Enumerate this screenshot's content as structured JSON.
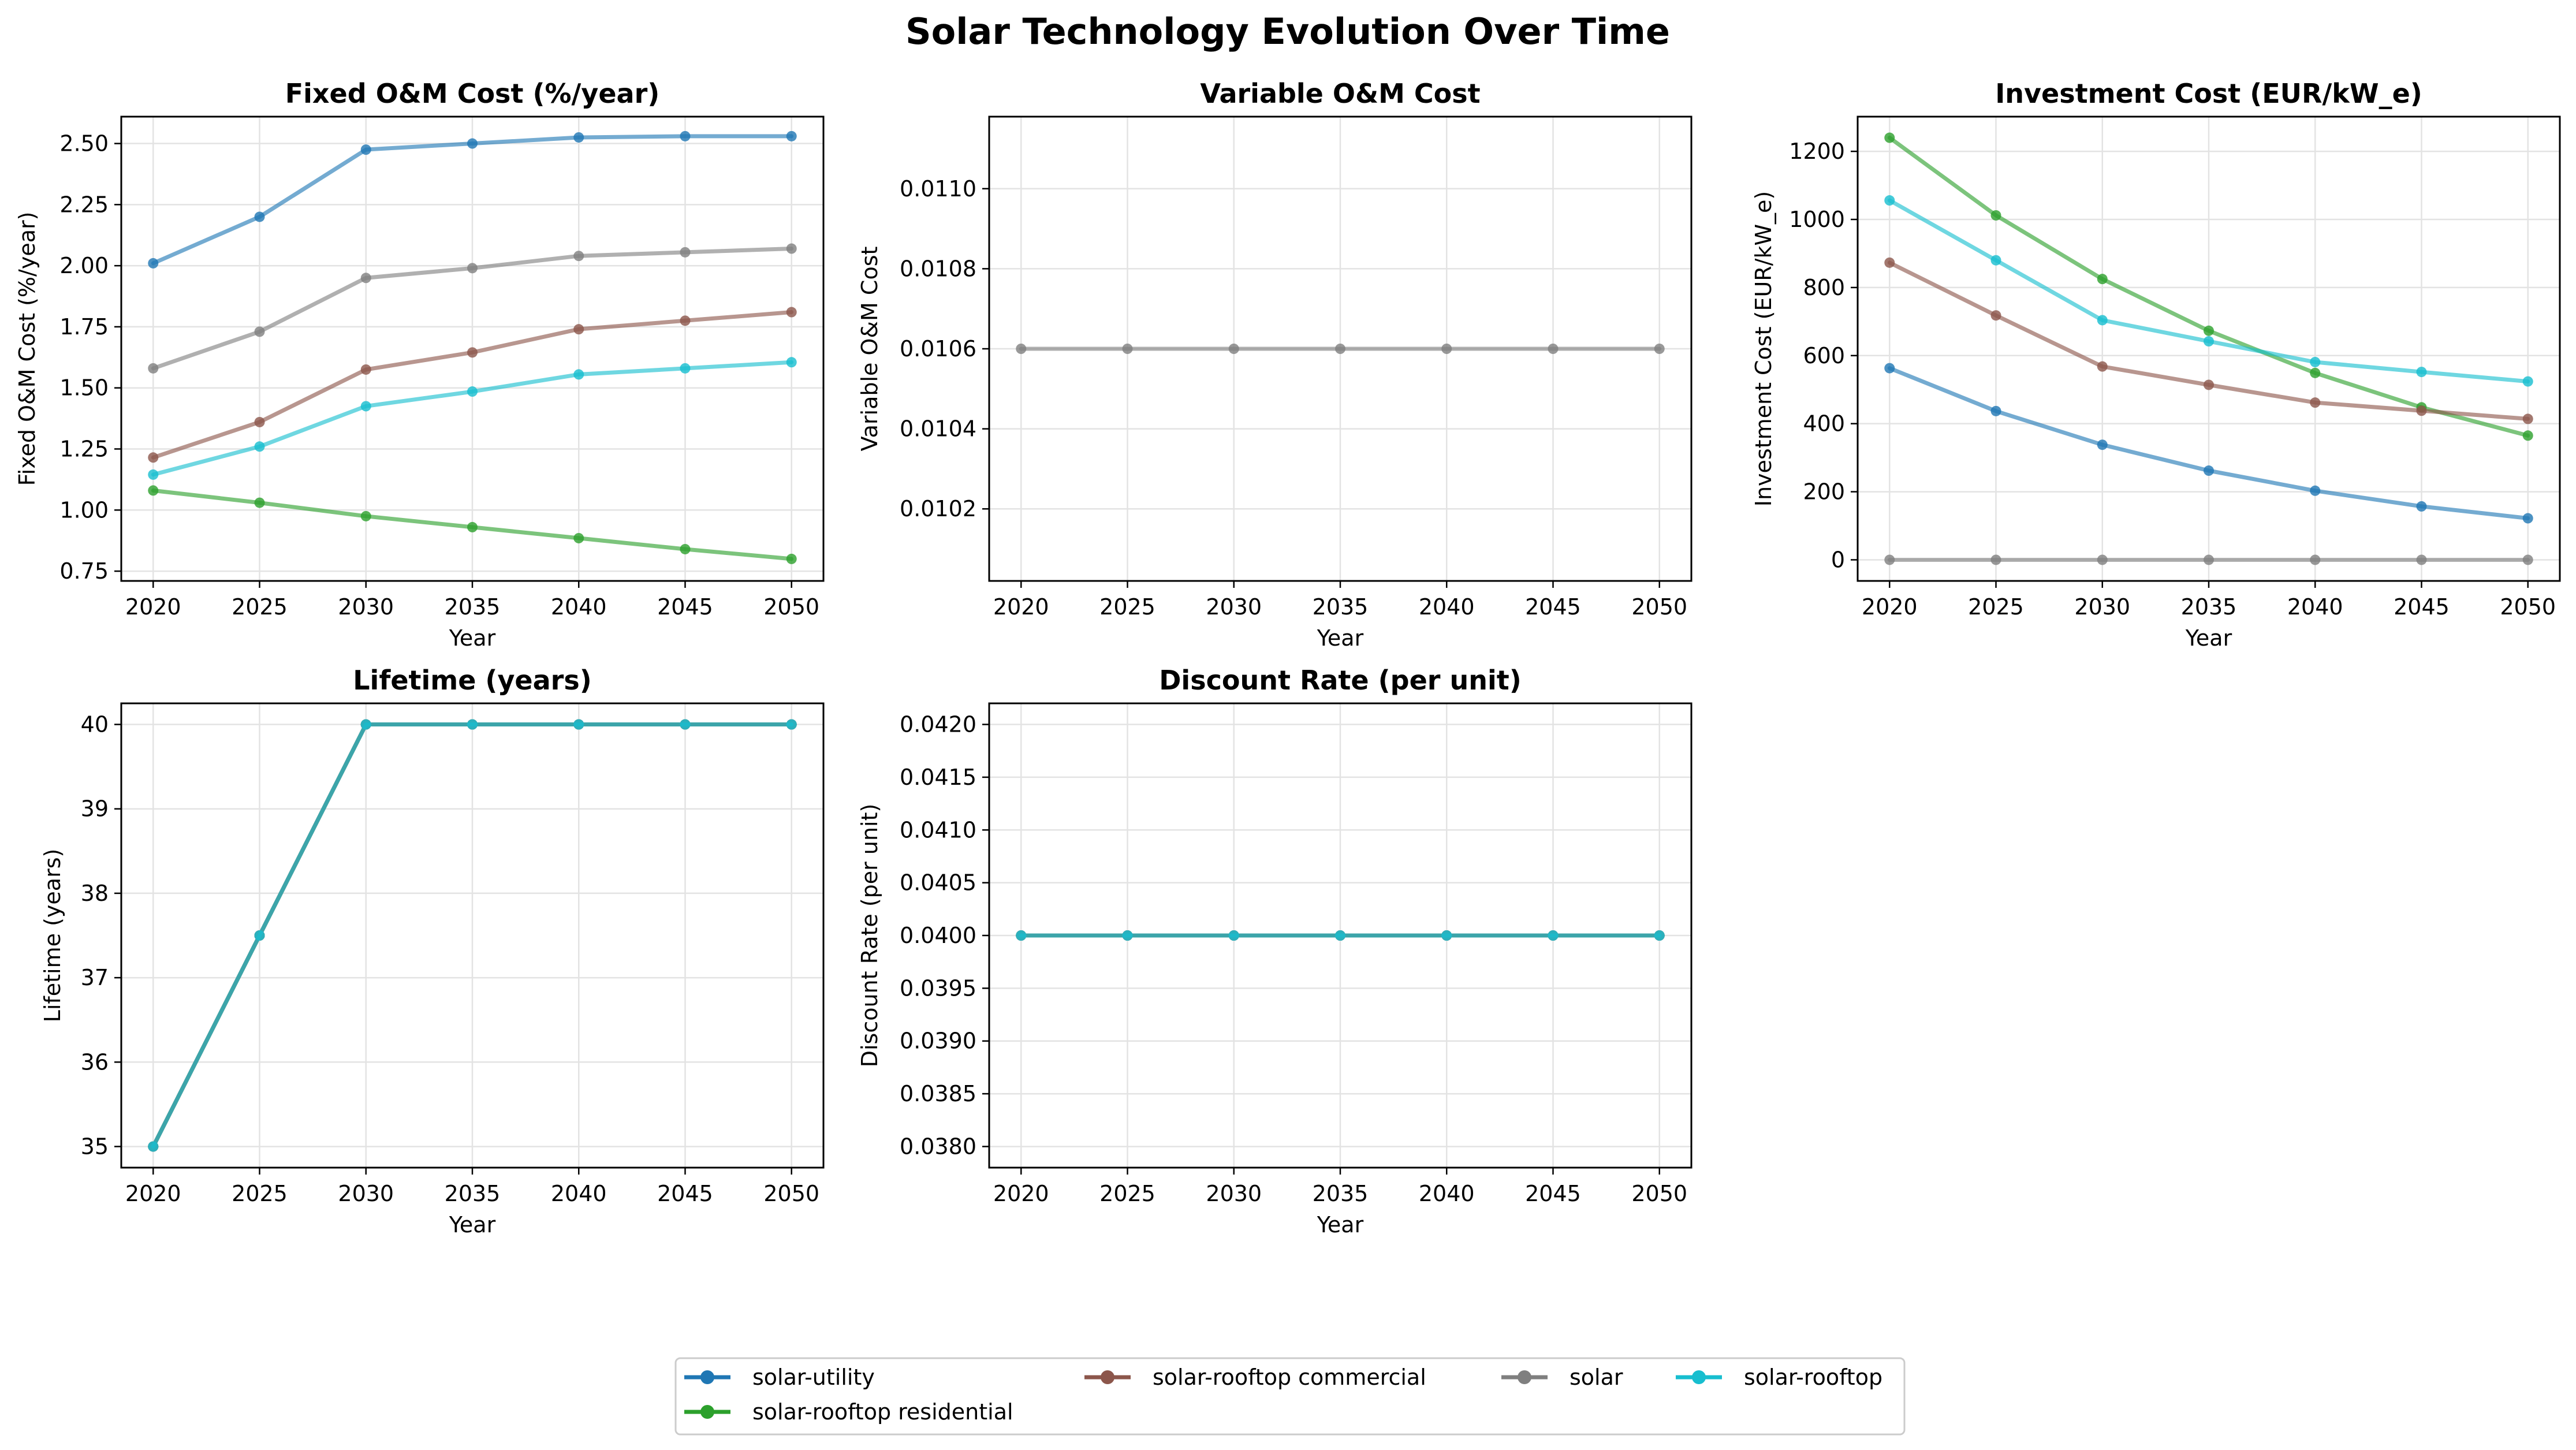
{
  "figure": {
    "title": "Solar Technology Evolution Over Time"
  },
  "legend": {
    "items": [
      {
        "name": "solar-utility",
        "color": "#1f77b4"
      },
      {
        "name": "solar-rooftop residential",
        "color": "#2ca02c"
      },
      {
        "name": "solar-rooftop commercial",
        "color": "#8c564b"
      },
      {
        "name": "solar",
        "color": "#7f7f7f"
      },
      {
        "name": "solar-rooftop",
        "color": "#17becf"
      }
    ]
  },
  "chart_data": [
    {
      "type": "line",
      "title": "Fixed O&M Cost (%/year)",
      "xlabel": "Year",
      "ylabel": "Fixed O&M Cost (%/year)",
      "x": [
        2020,
        2025,
        2030,
        2035,
        2040,
        2045,
        2050
      ],
      "xlim": [
        2018.5,
        2051.5
      ],
      "ylim": [
        0.71,
        2.61
      ],
      "yticks": [
        0.75,
        1.0,
        1.25,
        1.5,
        1.75,
        2.0,
        2.25,
        2.5
      ],
      "ytick_labels": [
        "0.75",
        "1.00",
        "1.25",
        "1.50",
        "1.75",
        "2.00",
        "2.25",
        "2.50"
      ],
      "grid": true,
      "series": [
        {
          "name": "solar-utility",
          "color": "#1f77b4",
          "values": [
            2.01,
            2.2,
            2.475,
            2.5,
            2.525,
            2.53,
            2.53
          ]
        },
        {
          "name": "solar-rooftop residential",
          "color": "#2ca02c",
          "values": [
            1.08,
            1.03,
            0.975,
            0.93,
            0.885,
            0.84,
            0.8
          ]
        },
        {
          "name": "solar-rooftop commercial",
          "color": "#8c564b",
          "values": [
            1.215,
            1.36,
            1.575,
            1.645,
            1.74,
            1.775,
            1.81
          ]
        },
        {
          "name": "solar",
          "color": "#7f7f7f",
          "values": [
            1.58,
            1.73,
            1.95,
            1.99,
            2.04,
            2.055,
            2.07
          ]
        },
        {
          "name": "solar-rooftop",
          "color": "#17becf",
          "values": [
            1.145,
            1.26,
            1.425,
            1.485,
            1.555,
            1.58,
            1.605
          ]
        }
      ]
    },
    {
      "type": "line",
      "title": "Variable O&M Cost",
      "xlabel": "Year",
      "ylabel": "Variable O&M Cost",
      "x": [
        2020,
        2025,
        2030,
        2035,
        2040,
        2045,
        2050
      ],
      "xlim": [
        2018.5,
        2051.5
      ],
      "ylim": [
        0.01002,
        0.01118
      ],
      "yticks": [
        0.0102,
        0.0104,
        0.0106,
        0.0108,
        0.011
      ],
      "ytick_labels": [
        "0.0102",
        "0.0104",
        "0.0106",
        "0.0108",
        "0.0110"
      ],
      "grid": true,
      "series": [
        {
          "name": "solar",
          "color": "#7f7f7f",
          "values": [
            0.0106,
            0.0106,
            0.0106,
            0.0106,
            0.0106,
            0.0106,
            0.0106
          ]
        }
      ]
    },
    {
      "type": "line",
      "title": "Investment Cost (EUR/kW_e)",
      "xlabel": "Year",
      "ylabel": "Investment Cost (EUR/kW_e)",
      "x": [
        2020,
        2025,
        2030,
        2035,
        2040,
        2045,
        2050
      ],
      "xlim": [
        2018.5,
        2051.5
      ],
      "ylim": [
        -62,
        1302
      ],
      "yticks": [
        0,
        200,
        400,
        600,
        800,
        1000,
        1200
      ],
      "ytick_labels": [
        "0",
        "200",
        "400",
        "600",
        "800",
        "1000",
        "1200"
      ],
      "grid": true,
      "series": [
        {
          "name": "solar-utility",
          "color": "#1f77b4",
          "values": [
            563,
            437,
            338,
            262,
            203,
            157,
            122
          ]
        },
        {
          "name": "solar-rooftop residential",
          "color": "#2ca02c",
          "values": [
            1240,
            1012,
            825,
            673,
            549,
            448,
            365
          ]
        },
        {
          "name": "solar-rooftop commercial",
          "color": "#8c564b",
          "values": [
            873,
            718,
            568,
            514,
            462,
            438,
            414
          ]
        },
        {
          "name": "solar",
          "color": "#7f7f7f",
          "values": [
            0,
            0,
            0,
            0,
            0,
            0,
            0
          ]
        },
        {
          "name": "solar-rooftop",
          "color": "#17becf",
          "values": [
            1056,
            880,
            704,
            642,
            581,
            552,
            524
          ]
        }
      ]
    },
    {
      "type": "line",
      "title": "Lifetime (years)",
      "xlabel": "Year",
      "ylabel": "Lifetime (years)",
      "x": [
        2020,
        2025,
        2030,
        2035,
        2040,
        2045,
        2050
      ],
      "xlim": [
        2018.5,
        2051.5
      ],
      "ylim": [
        34.75,
        40.25
      ],
      "yticks": [
        35,
        36,
        37,
        38,
        39,
        40
      ],
      "ytick_labels": [
        "35",
        "36",
        "37",
        "38",
        "39",
        "40"
      ],
      "grid": true,
      "series": [
        {
          "name": "solar-utility",
          "color": "#1f77b4",
          "values": [
            35,
            37.5,
            40,
            40,
            40,
            40,
            40
          ]
        },
        {
          "name": "solar-rooftop residential",
          "color": "#2ca02c",
          "values": [
            35,
            37.5,
            40,
            40,
            40,
            40,
            40
          ]
        },
        {
          "name": "solar-rooftop commercial",
          "color": "#8c564b",
          "values": [
            35,
            37.5,
            40,
            40,
            40,
            40,
            40
          ]
        },
        {
          "name": "solar",
          "color": "#7f7f7f",
          "values": [
            35,
            37.5,
            40,
            40,
            40,
            40,
            40
          ]
        },
        {
          "name": "solar-rooftop",
          "color": "#17becf",
          "values": [
            35,
            37.5,
            40,
            40,
            40,
            40,
            40
          ]
        }
      ]
    },
    {
      "type": "line",
      "title": "Discount Rate (per unit)",
      "xlabel": "Year",
      "ylabel": "Discount Rate (per unit)",
      "x": [
        2020,
        2025,
        2030,
        2035,
        2040,
        2045,
        2050
      ],
      "xlim": [
        2018.5,
        2051.5
      ],
      "ylim": [
        0.0378,
        0.0422
      ],
      "yticks": [
        0.038,
        0.0385,
        0.039,
        0.0395,
        0.04,
        0.0405,
        0.041,
        0.0415,
        0.042
      ],
      "ytick_labels": [
        "0.0380",
        "0.0385",
        "0.0390",
        "0.0395",
        "0.0400",
        "0.0405",
        "0.0410",
        "0.0415",
        "0.0420"
      ],
      "grid": true,
      "series": [
        {
          "name": "solar-utility",
          "color": "#1f77b4",
          "values": [
            0.04,
            0.04,
            0.04,
            0.04,
            0.04,
            0.04,
            0.04
          ]
        },
        {
          "name": "solar-rooftop residential",
          "color": "#2ca02c",
          "values": [
            0.04,
            0.04,
            0.04,
            0.04,
            0.04,
            0.04,
            0.04
          ]
        },
        {
          "name": "solar-rooftop commercial",
          "color": "#8c564b",
          "values": [
            0.04,
            0.04,
            0.04,
            0.04,
            0.04,
            0.04,
            0.04
          ]
        },
        {
          "name": "solar",
          "color": "#7f7f7f",
          "values": [
            0.04,
            0.04,
            0.04,
            0.04,
            0.04,
            0.04,
            0.04
          ]
        },
        {
          "name": "solar-rooftop",
          "color": "#17becf",
          "values": [
            0.04,
            0.04,
            0.04,
            0.04,
            0.04,
            0.04,
            0.04
          ]
        }
      ]
    }
  ]
}
